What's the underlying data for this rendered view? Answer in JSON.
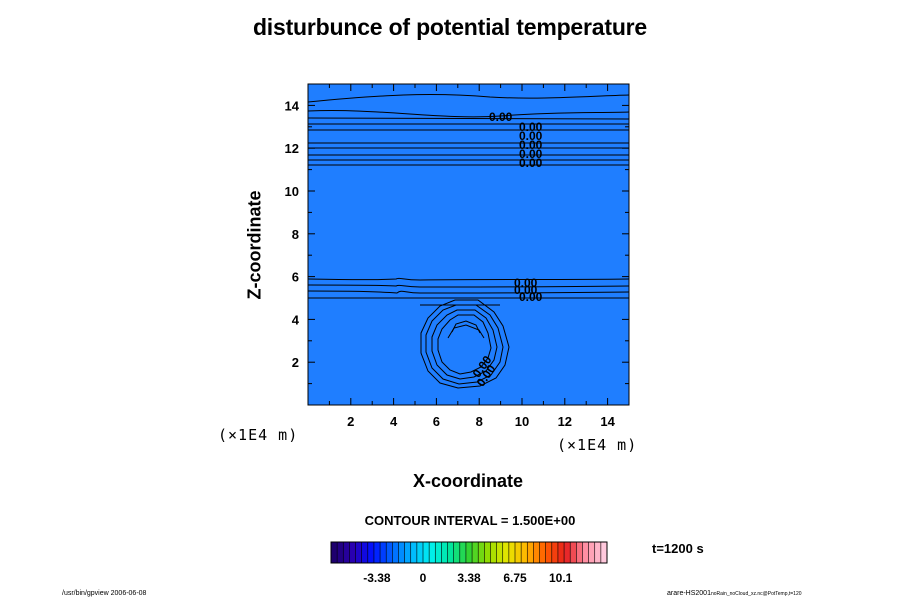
{
  "chart_data": {
    "type": "contour",
    "title": "disturbunce of potential temperature",
    "xlabel": "X-coordinate",
    "ylabel": "Z-coordinate",
    "x_unit": "(×1E4 m)",
    "y_unit": "(×1E4 m)",
    "xlim": [
      0,
      15
    ],
    "ylim": [
      0,
      15
    ],
    "x_ticks": [
      "2",
      "4",
      "6",
      "8",
      "10",
      "12",
      "14"
    ],
    "y_ticks": [
      "2",
      "4",
      "6",
      "8",
      "10",
      "12",
      "14"
    ],
    "fill_color": "#1f7eff",
    "contour_interval": "CONTOUR INTERVAL = 1.500E+00",
    "contour_labels": [
      "0.00",
      "0.00",
      "0.00",
      "0.00",
      "0.00",
      "0.00",
      "0.00",
      "0.00",
      "0.00",
      "0.00",
      "0.00"
    ],
    "colorbar": {
      "tick_labels": [
        "-3.38",
        "0",
        "3.38",
        "6.75",
        "10.1"
      ],
      "tick_values": [
        -3.38,
        0,
        3.38,
        6.75,
        10.1
      ],
      "range": [
        -6.75,
        13.5
      ],
      "colors": [
        "#1e006e",
        "#2a00b4",
        "#0010ff",
        "#0064ff",
        "#00b4ff",
        "#00f0f0",
        "#00e6a0",
        "#32d232",
        "#96dc00",
        "#e6e600",
        "#ffb400",
        "#ff5a00",
        "#e61e1e",
        "#ff8ca0",
        "#ffc8dc"
      ]
    }
  },
  "time_label": "t=1200 s",
  "footer_left": "/usr/bin/gpview 2006-06-08",
  "footer_right_main": "arare-HS2001",
  "footer_right_sub": "noRain_noCloud_xz.nc@PotTemp,t=120"
}
